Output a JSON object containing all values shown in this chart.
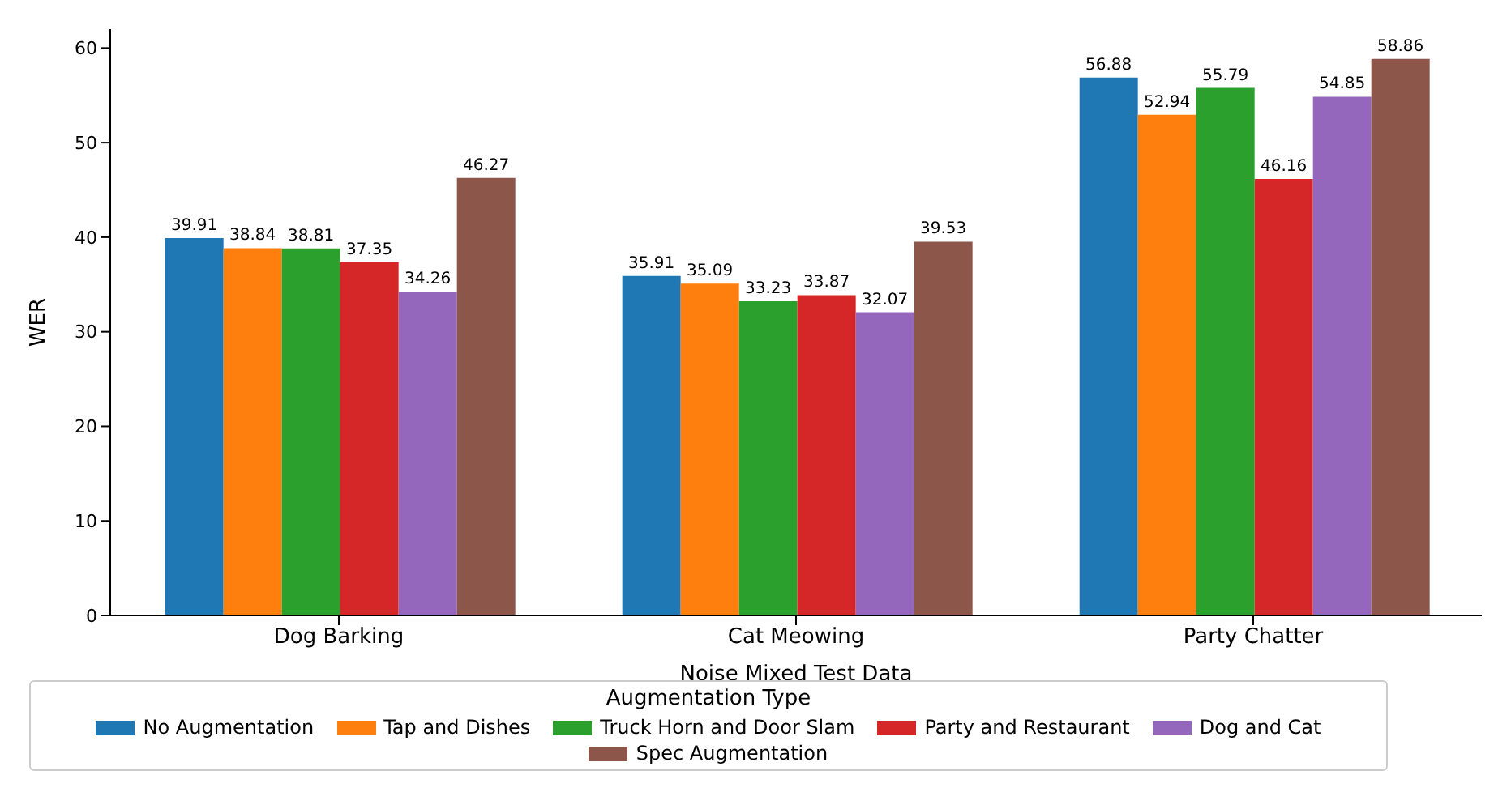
{
  "chart_data": {
    "type": "bar",
    "xlabel": "Noise Mixed Test Data",
    "ylabel": "WER",
    "legend_title": "Augmentation Type",
    "categories": [
      "Dog Barking",
      "Cat Meowing",
      "Party Chatter"
    ],
    "series": [
      {
        "name": "No Augmentation",
        "color": "#1f77b4",
        "values": [
          39.91,
          35.91,
          56.88
        ]
      },
      {
        "name": "Tap and Dishes",
        "color": "#ff7f0e",
        "values": [
          38.84,
          35.09,
          52.94
        ]
      },
      {
        "name": "Truck Horn and Door Slam",
        "color": "#2ca02c",
        "values": [
          38.81,
          33.23,
          55.79
        ]
      },
      {
        "name": "Party and Restaurant",
        "color": "#d62728",
        "values": [
          37.35,
          33.87,
          46.16
        ]
      },
      {
        "name": "Dog and Cat",
        "color": "#9467bd",
        "values": [
          34.26,
          32.07,
          54.85
        ]
      },
      {
        "name": "Spec Augmentation",
        "color": "#8c564b",
        "values": [
          46.27,
          39.53,
          58.86
        ]
      }
    ],
    "ylim": [
      0,
      62
    ],
    "yticks": [
      0,
      10,
      20,
      30,
      40,
      50,
      60
    ],
    "grid": false,
    "legend": "bottom",
    "data_labels": true
  }
}
